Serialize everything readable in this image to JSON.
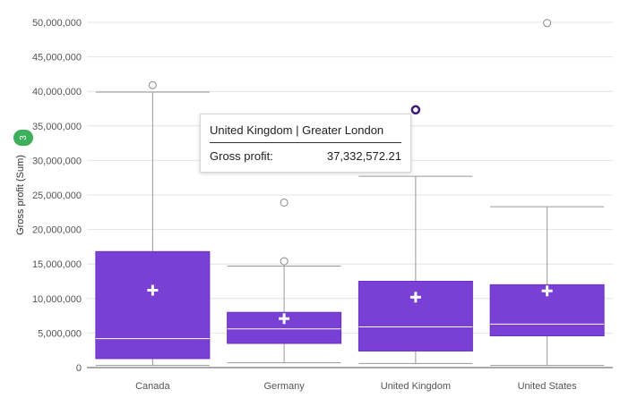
{
  "chart_data": {
    "type": "boxplot",
    "ylabel": "Gross profit (Sum)",
    "ylim": [
      0,
      50000000
    ],
    "y_ticks": [
      0,
      5000000,
      10000000,
      15000000,
      20000000,
      25000000,
      30000000,
      35000000,
      40000000,
      45000000,
      50000000
    ],
    "y_tick_labels": [
      "0",
      "5,000,000",
      "10,000,000",
      "15,000,000",
      "20,000,000",
      "25,000,000",
      "30,000,000",
      "35,000,000",
      "40,000,000",
      "45,000,000",
      "50,000,000"
    ],
    "categories": [
      "Canada",
      "Germany",
      "United Kingdom",
      "United States"
    ],
    "boxes": [
      {
        "category": "Canada",
        "whisker_low": 300000,
        "q1": 1300000,
        "median": 4200000,
        "q3": 16800000,
        "whisker_high": 39900000,
        "mean": 11200000,
        "outliers": [
          40900000
        ]
      },
      {
        "category": "Germany",
        "whisker_low": 700000,
        "q1": 3500000,
        "median": 5600000,
        "q3": 8000000,
        "whisker_high": 14700000,
        "mean": 7100000,
        "outliers": [
          15400000,
          23900000
        ]
      },
      {
        "category": "United Kingdom",
        "whisker_low": 600000,
        "q1": 2400000,
        "median": 5900000,
        "q3": 12500000,
        "whisker_high": 27700000,
        "mean": 10200000,
        "outliers": [
          37332572.21
        ]
      },
      {
        "category": "United States",
        "whisker_low": 300000,
        "q1": 4600000,
        "median": 6300000,
        "q3": 12000000,
        "whisker_high": 23300000,
        "mean": 11100000,
        "outliers": [
          49900000
        ]
      }
    ],
    "grid": true,
    "box_color": "#7a3fd4",
    "highlight_color": "#3a1a7a"
  },
  "badge": {
    "count": "3",
    "color": "#3dae5a"
  },
  "tooltip": {
    "title": "United Kingdom | Greater London",
    "label": "Gross profit:",
    "value": "37,332,572.21"
  }
}
